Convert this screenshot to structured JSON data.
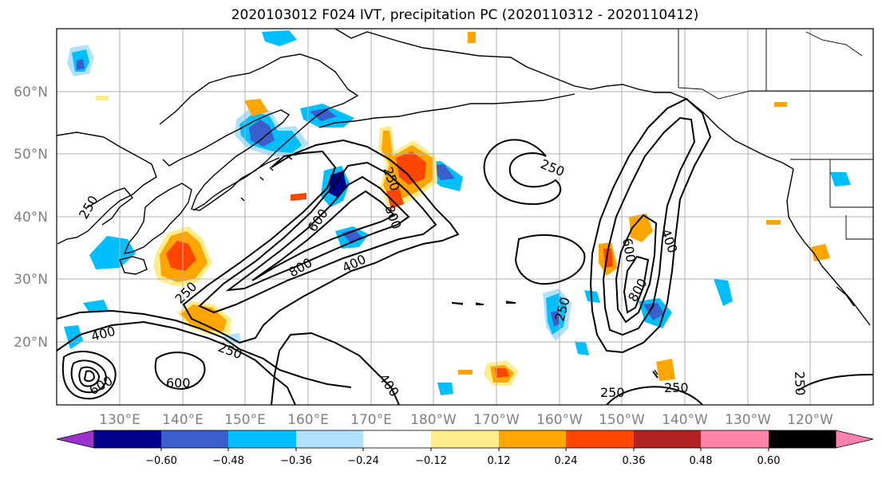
{
  "title": "2020103012 F024 IVT, precipitation PC (2020110312 - 2020110412)",
  "lat_labels": [
    "60°N",
    "50°N",
    "40°N",
    "30°N",
    "20°N"
  ],
  "lon_labels": [
    "130°E",
    "140°E",
    "150°E",
    "160°E",
    "170°E",
    "180°W",
    "170°W",
    "160°W",
    "150°W",
    "140°W",
    "130°W",
    "120°W"
  ],
  "contour_labels": [
    "250",
    "250",
    "250",
    "250",
    "250",
    "250",
    "250",
    "250",
    "250",
    "400",
    "400",
    "400",
    "400",
    "600",
    "600",
    "600",
    "600",
    "800",
    "800",
    "800"
  ],
  "colorbar": {
    "ticks": [
      "−0.60",
      "−0.48",
      "−0.36",
      "−0.24",
      "−0.12",
      "0.12",
      "0.24",
      "0.36",
      "0.48",
      "0.60"
    ],
    "colors": [
      "#9a32cd",
      "#00008b",
      "#3a5fcd",
      "#00bfff",
      "#b0e2ff",
      "#ffffff",
      "#ffec8b",
      "#ffa500",
      "#ff4500",
      "#b22222",
      "#ff82ab"
    ]
  },
  "colors": {
    "contour": "#000000",
    "grid": "#b0b0b0",
    "coast": "#000000",
    "axis_label": "#808080"
  }
}
